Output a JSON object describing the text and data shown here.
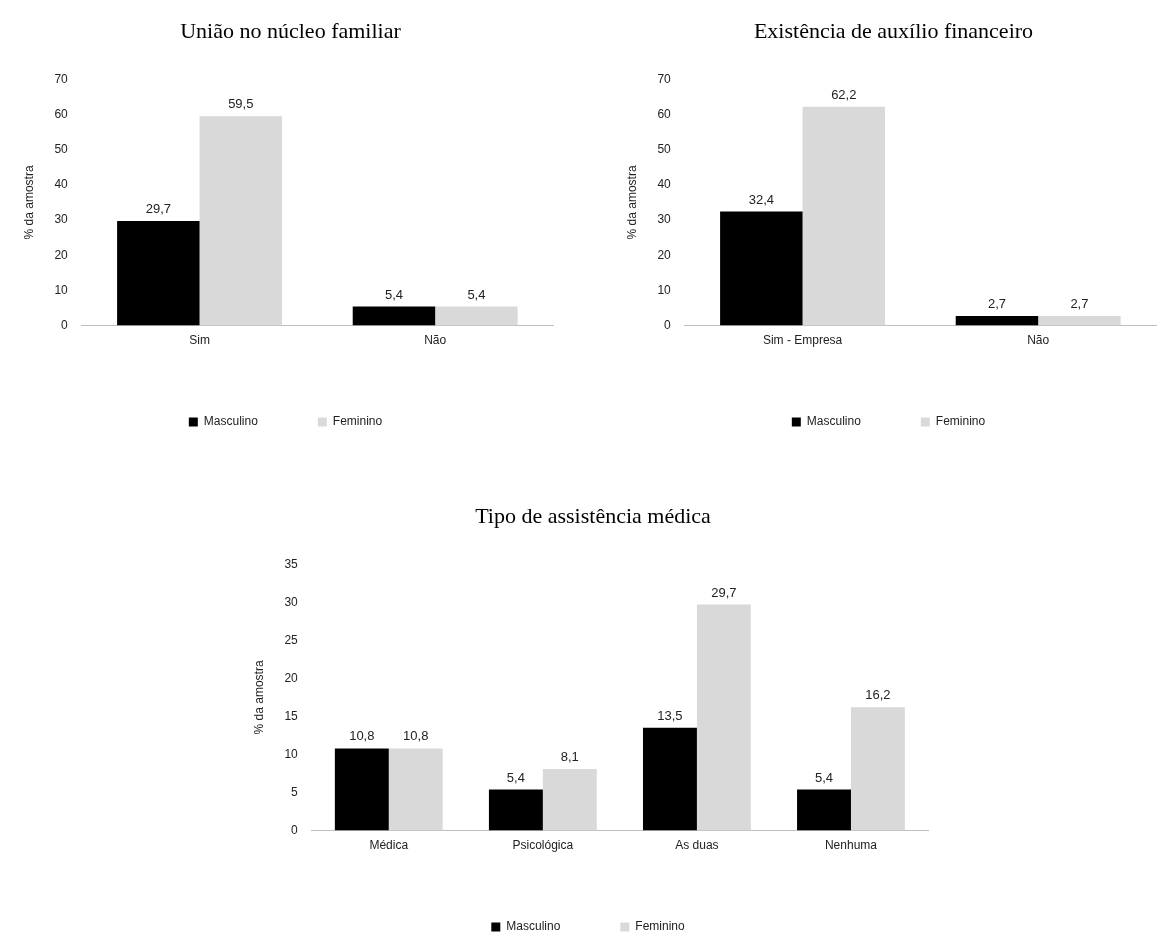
{
  "chart_data": [
    {
      "type": "bar",
      "title": "União no núcleo familiar",
      "ylabel": "% da amostra",
      "categories": [
        "Sim",
        "Não"
      ],
      "ylim": [
        0,
        70
      ],
      "yticks": [
        0,
        10,
        20,
        30,
        40,
        50,
        60,
        70
      ],
      "grid": false,
      "legend": "bottom",
      "series": [
        {
          "name": "Masculino",
          "color": "#000000",
          "values": [
            29.7,
            5.4
          ],
          "value_labels": [
            "29,7",
            "5,4"
          ]
        },
        {
          "name": "Feminino",
          "color": "#d9d9d9",
          "values": [
            59.5,
            5.4
          ],
          "value_labels": [
            "59,5",
            "5,4"
          ]
        }
      ]
    },
    {
      "type": "bar",
      "title": "Existência de auxílio financeiro",
      "ylabel": "% da amostra",
      "categories": [
        "Sim - Empresa",
        "Não"
      ],
      "ylim": [
        0,
        70
      ],
      "yticks": [
        0,
        10,
        20,
        30,
        40,
        50,
        60,
        70
      ],
      "grid": false,
      "legend": "bottom",
      "series": [
        {
          "name": "Masculino",
          "color": "#000000",
          "values": [
            32.4,
            2.7
          ],
          "value_labels": [
            "32,4",
            "2,7"
          ]
        },
        {
          "name": "Feminino",
          "color": "#d9d9d9",
          "values": [
            62.2,
            2.7
          ],
          "value_labels": [
            "62,2",
            "2,7"
          ]
        }
      ]
    },
    {
      "type": "bar",
      "title": "Tipo de assistência médica",
      "ylabel": "% da amostra",
      "categories": [
        "Médica",
        "Psicológica",
        "As duas",
        "Nenhuma"
      ],
      "ylim": [
        0,
        35
      ],
      "yticks": [
        0,
        5,
        10,
        15,
        20,
        25,
        30,
        35
      ],
      "grid": false,
      "legend": "bottom",
      "series": [
        {
          "name": "Masculino",
          "color": "#000000",
          "values": [
            10.8,
            5.4,
            13.5,
            5.4
          ],
          "value_labels": [
            "10,8",
            "5,4",
            "13,5",
            "5,4"
          ]
        },
        {
          "name": "Feminino",
          "color": "#d9d9d9",
          "values": [
            10.8,
            8.1,
            29.7,
            16.2
          ],
          "value_labels": [
            "10,8",
            "8,1",
            "29,7",
            "16,2"
          ]
        }
      ]
    }
  ]
}
